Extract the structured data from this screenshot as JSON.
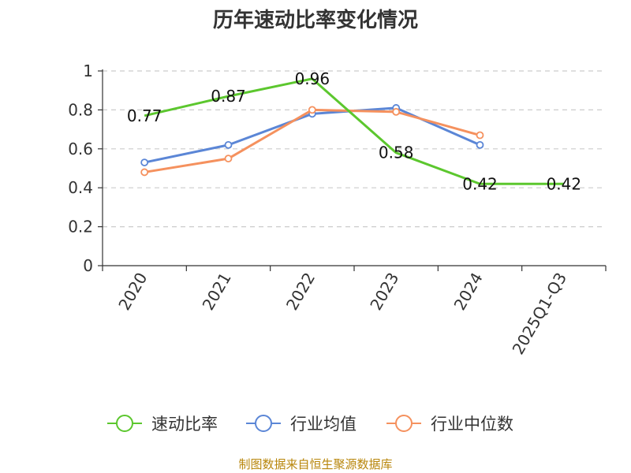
{
  "chart_data": {
    "type": "line",
    "title": "历年速动比率变化情况",
    "categories": [
      "2020",
      "2021",
      "2022",
      "2023",
      "2024",
      "2025Q1-Q3"
    ],
    "ylim": [
      0,
      1
    ],
    "yticks": [
      0,
      0.2,
      0.4,
      0.6,
      0.8,
      1
    ],
    "ytick_labels": [
      "0",
      "0.2",
      "0.4",
      "0.6",
      "0.8",
      "1"
    ],
    "grid": true,
    "legend_position": "bottom",
    "series": [
      {
        "name": "速动比率",
        "color": "#5cc72e",
        "marker": "none",
        "show_labels": true,
        "values": [
          0.77,
          0.87,
          0.96,
          0.58,
          0.42,
          0.42
        ],
        "labels": [
          "0.77",
          "0.87",
          "0.96",
          "0.58",
          "0.42",
          "0.42"
        ]
      },
      {
        "name": "行业均值",
        "color": "#5b86d6",
        "marker": "circle",
        "show_labels": false,
        "values": [
          0.53,
          0.62,
          0.78,
          0.81,
          0.62,
          null
        ]
      },
      {
        "name": "行业中位数",
        "color": "#f5915e",
        "marker": "circle",
        "show_labels": false,
        "values": [
          0.48,
          0.55,
          0.8,
          0.79,
          0.67,
          null
        ]
      }
    ],
    "source": "制图数据来自恒生聚源数据库"
  }
}
